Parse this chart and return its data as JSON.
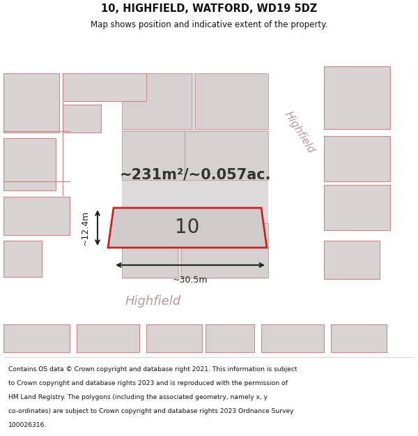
{
  "title_line1": "10, HIGHFIELD, WATFORD, WD19 5DZ",
  "title_line2": "Map shows position and indicative extent of the property.",
  "area_text": "~231m²/~0.057ac.",
  "house_number": "10",
  "dim_width": "~30.5m",
  "dim_height": "~12.4m",
  "footer_lines": [
    "Contains OS data © Crown copyright and database right 2021. This information is subject",
    "to Crown copyright and database rights 2023 and is reproduced with the permission of",
    "HM Land Registry. The polygons (including the associated geometry, namely x, y",
    "co-ordinates) are subject to Crown copyright and database rights 2023 Ordnance Survey",
    "100026316."
  ],
  "map_bg": "#f0eeee",
  "road_white": "#ffffff",
  "building_fill": "#d8d4d4",
  "building_edge": "#cc8888",
  "property_fill": "#d0cccc",
  "property_stroke": "#cc2222",
  "road_label_color": "#bb9999",
  "title_color": "#111111",
  "footer_color": "#111111",
  "dim_color": "#222222",
  "num_color": "#333333"
}
